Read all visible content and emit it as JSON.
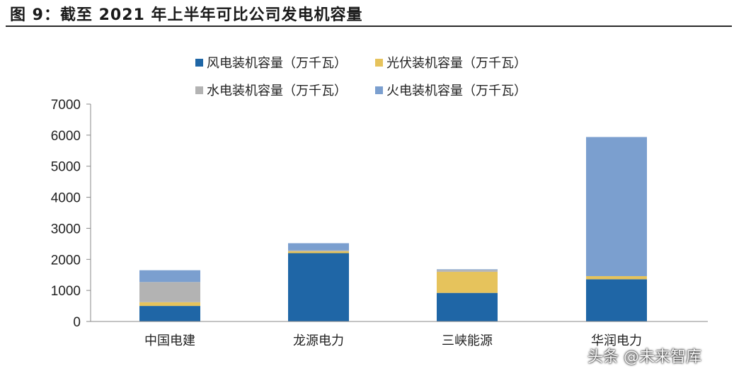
{
  "header": {
    "title": "图 9：截至 2021 年上半年可比公司发电机容量"
  },
  "chart_data": {
    "type": "bar",
    "stacked": true,
    "categories": [
      "中国电建",
      "龙源电力",
      "三峡能源",
      "华润电力"
    ],
    "series": [
      {
        "name": "风电装机容量（万千瓦）",
        "color": "#1f66a6",
        "values": [
          500,
          2200,
          920,
          1360
        ]
      },
      {
        "name": "光伏装机容量（万千瓦）",
        "color": "#e6c35c",
        "values": [
          120,
          60,
          680,
          100
        ]
      },
      {
        "name": "水电装机容量（万千瓦）",
        "color": "#b3b3b3",
        "values": [
          650,
          30,
          60,
          0
        ]
      },
      {
        "name": "火电装机容量（万千瓦）",
        "color": "#7b9fcf",
        "values": [
          380,
          230,
          20,
          4480
        ]
      }
    ],
    "yticks": [
      0,
      1000,
      2000,
      3000,
      4000,
      5000,
      6000,
      7000
    ],
    "ylim": [
      0,
      7000
    ],
    "legend_position": "top",
    "grid": false
  },
  "watermark": {
    "text": "头条 @未来智库"
  }
}
